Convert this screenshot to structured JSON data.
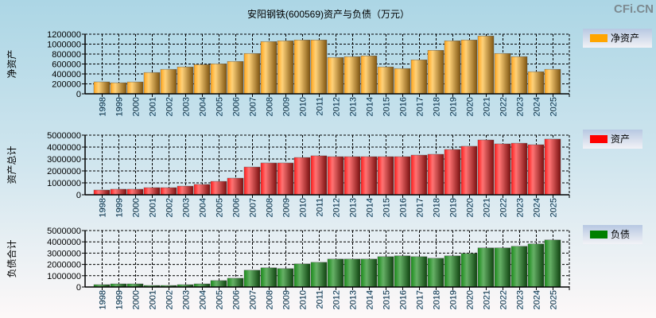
{
  "title": "安阳钢铁(600569)资产与负债（万元）",
  "watermark": "CFi.CN",
  "chart_data": [
    {
      "type": "bar",
      "ylabel": "净资产",
      "legend": "净资产",
      "legend_placement": "right",
      "color": "#ffa500",
      "ylim": [
        0,
        1200000
      ],
      "yticks": [
        0,
        200000,
        400000,
        600000,
        800000,
        1000000,
        1200000
      ],
      "categories": [
        "1998",
        "1999",
        "2000",
        "2001",
        "2002",
        "2003",
        "2004",
        "2005",
        "2006",
        "2007",
        "2008",
        "2009",
        "2010",
        "2011",
        "2012",
        "2013",
        "2014",
        "2015",
        "2016",
        "2017",
        "2018",
        "2019",
        "2020",
        "2021",
        "2022",
        "2023",
        "2024",
        "2025"
      ],
      "values": [
        240000,
        223000,
        239000,
        430000,
        494000,
        542000,
        590000,
        605000,
        653000,
        813000,
        1052000,
        1067000,
        1083000,
        1083000,
        733000,
        749000,
        765000,
        542000,
        510000,
        685000,
        876000,
        1067000,
        1083000,
        1163000,
        813000,
        749000,
        446000,
        494000
      ],
      "grid": true
    },
    {
      "type": "bar",
      "ylabel": "资产总计",
      "legend": "资产",
      "legend_placement": "right",
      "color": "#ff0000",
      "ylim": [
        0,
        5000000
      ],
      "yticks": [
        0,
        1000000,
        2000000,
        3000000,
        4000000,
        5000000
      ],
      "categories": [
        "1998",
        "1999",
        "2000",
        "2001",
        "2002",
        "2003",
        "2004",
        "2005",
        "2006",
        "2007",
        "2008",
        "2009",
        "2010",
        "2011",
        "2012",
        "2013",
        "2014",
        "2015",
        "2016",
        "2017",
        "2018",
        "2019",
        "2020",
        "2021",
        "2022",
        "2023",
        "2024",
        "2025"
      ],
      "values": [
        400000,
        470000,
        470000,
        600000,
        600000,
        730000,
        870000,
        1130000,
        1400000,
        2330000,
        2670000,
        2670000,
        3130000,
        3270000,
        3200000,
        3200000,
        3200000,
        3200000,
        3200000,
        3330000,
        3400000,
        3800000,
        4070000,
        4600000,
        4270000,
        4330000,
        4200000,
        4670000
      ],
      "grid": true
    },
    {
      "type": "bar",
      "ylabel": "负债合计",
      "legend": "负债",
      "legend_placement": "right",
      "color": "#008000",
      "ylim": [
        0,
        5000000
      ],
      "yticks": [
        0,
        1000000,
        2000000,
        3000000,
        4000000,
        5000000
      ],
      "categories": [
        "1998",
        "1999",
        "2000",
        "2001",
        "2002",
        "2003",
        "2004",
        "2005",
        "2006",
        "2007",
        "2008",
        "2009",
        "2010",
        "2011",
        "2012",
        "2013",
        "2014",
        "2015",
        "2016",
        "2017",
        "2018",
        "2019",
        "2020",
        "2021",
        "2022",
        "2023",
        "2024",
        "2025"
      ],
      "values": [
        210000,
        280000,
        280000,
        140000,
        140000,
        210000,
        280000,
        570000,
        780000,
        1490000,
        1700000,
        1630000,
        2050000,
        2190000,
        2480000,
        2480000,
        2480000,
        2690000,
        2760000,
        2690000,
        2550000,
        2760000,
        2970000,
        3470000,
        3470000,
        3610000,
        3820000,
        4170000
      ],
      "grid": true
    }
  ]
}
